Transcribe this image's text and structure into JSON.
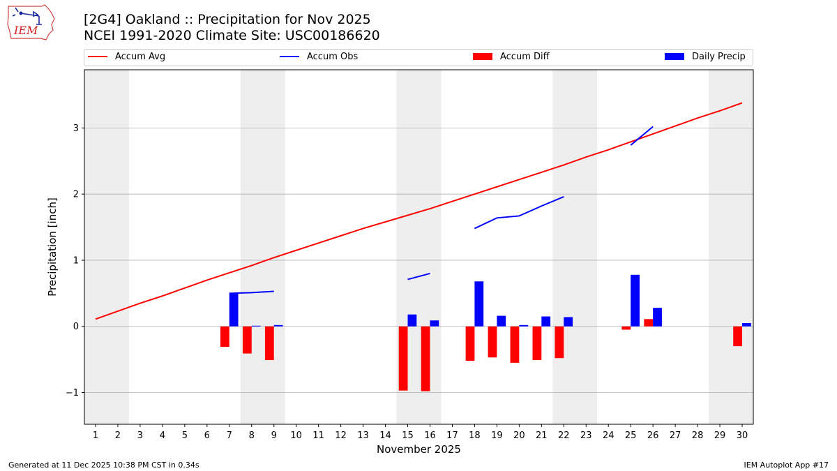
{
  "header": {
    "logo_text": "IEM",
    "title_line1": "[2G4] Oakland :: Precipitation for Nov 2025",
    "title_line2": "NCEI 1991-2020 Climate Site: USC00186620"
  },
  "footer": {
    "generated": "Generated at 11 Dec 2025 10:38 PM CST in 0.34s",
    "app": "IEM Autoplot App #17"
  },
  "colors": {
    "accum_avg": "#ff0000",
    "accum_obs": "#0000ff",
    "accum_diff": "#ff0000",
    "daily_precip": "#0000ff",
    "weekend_shade": "#eeeeee",
    "grid": "#b0b0b0"
  },
  "chart_data": {
    "type": "bar",
    "title": "[2G4] Oakland :: Precipitation for Nov 2025",
    "subtitle": "NCEI 1991-2020 Climate Site: USC00186620",
    "xlabel": "November 2025",
    "ylabel": "Precipitation [inch]",
    "xlim": [
      0.5,
      30.5
    ],
    "ylim": [
      -1.48,
      3.88
    ],
    "x": [
      1,
      2,
      3,
      4,
      5,
      6,
      7,
      8,
      9,
      10,
      11,
      12,
      13,
      14,
      15,
      16,
      17,
      18,
      19,
      20,
      21,
      22,
      23,
      24,
      25,
      26,
      27,
      28,
      29,
      30
    ],
    "xtick_labels": [
      "1",
      "2",
      "3",
      "4",
      "5",
      "6",
      "7",
      "8",
      "9",
      "10",
      "11",
      "12",
      "13",
      "14",
      "15",
      "16",
      "17",
      "18",
      "19",
      "20",
      "21",
      "22",
      "23",
      "24",
      "25",
      "26",
      "27",
      "28",
      "29",
      "30"
    ],
    "yticks": [
      -1,
      0,
      1,
      2,
      3
    ],
    "ytick_labels": [
      "−1",
      "0",
      "1",
      "2",
      "3"
    ],
    "weekend_spans": [
      [
        0.5,
        2.5
      ],
      [
        7.5,
        9.5
      ],
      [
        14.5,
        16.5
      ],
      [
        21.5,
        23.5
      ],
      [
        28.5,
        30.5
      ]
    ],
    "legend": [
      "Accum Avg",
      "Accum Obs",
      "Accum Diff",
      "Daily Precip"
    ],
    "series": [
      {
        "name": "Accum Avg",
        "kind": "line",
        "values": [
          0.11,
          0.23,
          0.35,
          0.46,
          0.58,
          0.7,
          0.81,
          0.92,
          1.04,
          1.15,
          1.26,
          1.37,
          1.48,
          1.58,
          1.68,
          1.78,
          1.89,
          2.0,
          2.11,
          2.22,
          2.33,
          2.44,
          2.56,
          2.67,
          2.79,
          2.91,
          3.03,
          3.15,
          3.26,
          3.38
        ]
      },
      {
        "name": "Accum Obs",
        "kind": "line",
        "values": [
          null,
          null,
          null,
          null,
          null,
          null,
          0.5,
          0.51,
          0.53,
          null,
          null,
          null,
          null,
          null,
          0.71,
          0.8,
          null,
          1.48,
          1.64,
          1.67,
          1.82,
          1.96,
          null,
          null,
          2.74,
          3.02,
          null,
          null,
          null,
          null
        ]
      },
      {
        "name": "Accum Diff",
        "kind": "bar",
        "values": [
          null,
          null,
          null,
          null,
          null,
          null,
          -0.31,
          -0.41,
          -0.51,
          null,
          null,
          null,
          null,
          null,
          -0.97,
          -0.98,
          null,
          -0.52,
          -0.47,
          -0.55,
          -0.51,
          -0.48,
          null,
          null,
          -0.05,
          0.11,
          null,
          null,
          null,
          -0.3
        ]
      },
      {
        "name": "Daily Precip",
        "kind": "bar",
        "values": [
          null,
          null,
          null,
          null,
          null,
          null,
          0.5,
          0.01,
          0.02,
          null,
          null,
          null,
          null,
          null,
          0.18,
          0.09,
          null,
          0.68,
          0.16,
          0.02,
          0.15,
          0.14,
          null,
          null,
          0.78,
          0.28,
          null,
          null,
          null,
          0.05
        ]
      }
    ]
  }
}
